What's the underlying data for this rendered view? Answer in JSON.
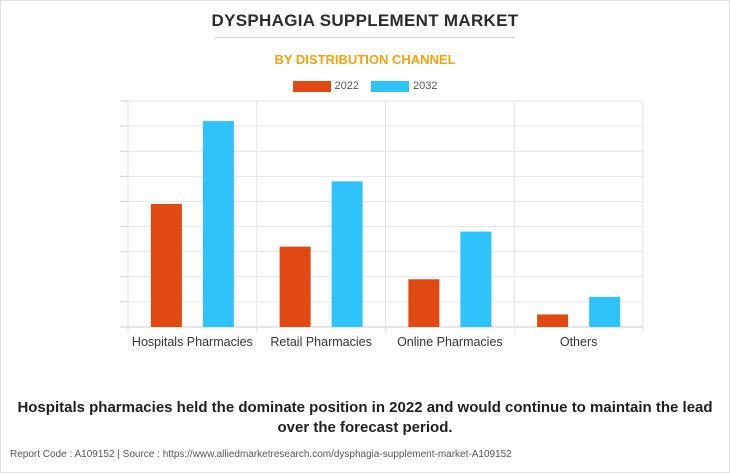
{
  "header": {
    "title": "DYSPHAGIA SUPPLEMENT MARKET",
    "subtitle": "BY DISTRIBUTION CHANNEL"
  },
  "legend": {
    "items": [
      {
        "label": "2022",
        "color": "#e04a12"
      },
      {
        "label": "2032",
        "color": "#2ec4fb"
      }
    ]
  },
  "chart_data": {
    "type": "bar",
    "categories": [
      "Hospitals Pharmacies",
      "Retail Pharmacies",
      "Online Pharmacies",
      "Others"
    ],
    "series": [
      {
        "name": "2022",
        "values": [
          4.9,
          3.2,
          1.9,
          0.5
        ],
        "color": "#e04a12"
      },
      {
        "name": "2032",
        "values": [
          8.2,
          5.8,
          3.8,
          1.2
        ],
        "color": "#2ec4fb"
      }
    ],
    "ylim": [
      0,
      9
    ],
    "grid": true,
    "legend_position": "top-center",
    "title": "DYSPHAGIA SUPPLEMENT MARKET",
    "subtitle": "BY DISTRIBUTION CHANNEL"
  },
  "footnote": "Hospitals pharmacies held the dominate position in 2022 and would continue to maintain the lead over the forecast period.",
  "source": "Report Code : A109152  |  Source : https://www.alliedmarketresearch.com/dysphagia-supplement-market-A109152"
}
